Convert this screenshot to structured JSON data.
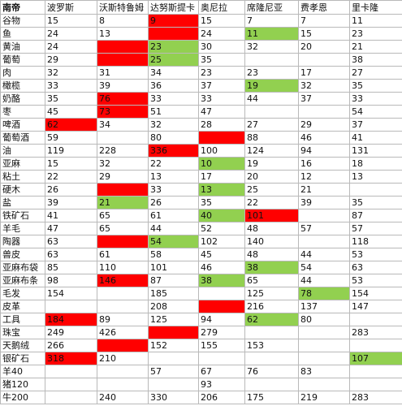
{
  "table": {
    "corner": "南帝",
    "columns": [
      "波罗斯",
      "沃斯特鲁姆",
      "达努斯提卡",
      "奥尼拉",
      "席隆尼亚",
      "费孝恩",
      "里卡隆"
    ],
    "rows": [
      {
        "item": "谷物",
        "cells": [
          {
            "v": "15"
          },
          {
            "v": "8"
          },
          {
            "v": "9",
            "h": "red"
          },
          {
            "v": "15"
          },
          {
            "v": "7"
          },
          {
            "v": "7"
          },
          {
            "v": "11"
          }
        ]
      },
      {
        "item": "鱼",
        "cells": [
          {
            "v": "24"
          },
          {
            "v": "13"
          },
          {
            "v": "",
            "h": "red"
          },
          {
            "v": "24"
          },
          {
            "v": "11",
            "h": "green"
          },
          {
            "v": "15"
          },
          {
            "v": "23"
          }
        ]
      },
      {
        "item": "黄油",
        "cells": [
          {
            "v": "24"
          },
          {
            "v": "",
            "h": "red"
          },
          {
            "v": "23",
            "h": "green"
          },
          {
            "v": "30"
          },
          {
            "v": "32"
          },
          {
            "v": "20"
          },
          {
            "v": "21"
          }
        ]
      },
      {
        "item": "葡萄",
        "cells": [
          {
            "v": "29"
          },
          {
            "v": "",
            "h": "red"
          },
          {
            "v": "25",
            "h": "green"
          },
          {
            "v": "35"
          },
          {
            "v": ""
          },
          {
            "v": ""
          },
          {
            "v": "38"
          }
        ]
      },
      {
        "item": "肉",
        "cells": [
          {
            "v": "32"
          },
          {
            "v": "31"
          },
          {
            "v": "34"
          },
          {
            "v": "23"
          },
          {
            "v": "23"
          },
          {
            "v": "17"
          },
          {
            "v": "27"
          }
        ]
      },
      {
        "item": "橄榄",
        "cells": [
          {
            "v": "33"
          },
          {
            "v": "39"
          },
          {
            "v": "36"
          },
          {
            "v": "37"
          },
          {
            "v": "19",
            "h": "green"
          },
          {
            "v": "32"
          },
          {
            "v": "35"
          }
        ]
      },
      {
        "item": "奶酪",
        "cells": [
          {
            "v": "35"
          },
          {
            "v": "76",
            "h": "red"
          },
          {
            "v": "33"
          },
          {
            "v": "33"
          },
          {
            "v": "44"
          },
          {
            "v": "37"
          },
          {
            "v": "33"
          }
        ]
      },
      {
        "item": "枣",
        "cells": [
          {
            "v": "45"
          },
          {
            "v": "73",
            "h": "red"
          },
          {
            "v": "51"
          },
          {
            "v": "47"
          },
          {
            "v": ""
          },
          {
            "v": ""
          },
          {
            "v": "54"
          }
        ]
      },
      {
        "item": "啤酒",
        "cells": [
          {
            "v": "62",
            "h": "red"
          },
          {
            "v": "34"
          },
          {
            "v": "32"
          },
          {
            "v": "28"
          },
          {
            "v": "27"
          },
          {
            "v": "29"
          },
          {
            "v": "37"
          }
        ]
      },
      {
        "item": "葡萄酒",
        "cells": [
          {
            "v": "59"
          },
          {
            "v": ""
          },
          {
            "v": "80"
          },
          {
            "v": "",
            "h": "red"
          },
          {
            "v": "88"
          },
          {
            "v": "46"
          },
          {
            "v": "41"
          }
        ]
      },
      {
        "item": "油",
        "cells": [
          {
            "v": "119"
          },
          {
            "v": "228"
          },
          {
            "v": "336",
            "h": "red"
          },
          {
            "v": "100"
          },
          {
            "v": "124"
          },
          {
            "v": "94"
          },
          {
            "v": "131"
          }
        ]
      },
      {
        "item": "亚麻",
        "cells": [
          {
            "v": "15"
          },
          {
            "v": "32"
          },
          {
            "v": "22"
          },
          {
            "v": "10",
            "h": "green"
          },
          {
            "v": "19"
          },
          {
            "v": "16"
          },
          {
            "v": "18"
          }
        ]
      },
      {
        "item": "粘土",
        "cells": [
          {
            "v": "22"
          },
          {
            "v": "29"
          },
          {
            "v": "13"
          },
          {
            "v": "17"
          },
          {
            "v": "20"
          },
          {
            "v": "12"
          },
          {
            "v": "13"
          }
        ]
      },
      {
        "item": "硬木",
        "cells": [
          {
            "v": "26"
          },
          {
            "v": "",
            "h": "red"
          },
          {
            "v": "33"
          },
          {
            "v": "13",
            "h": "green"
          },
          {
            "v": "25"
          },
          {
            "v": "21"
          },
          {
            "v": ""
          }
        ]
      },
      {
        "item": "盐",
        "cells": [
          {
            "v": "39"
          },
          {
            "v": "21",
            "h": "green"
          },
          {
            "v": "26"
          },
          {
            "v": "35"
          },
          {
            "v": "22"
          },
          {
            "v": "39"
          },
          {
            "v": "35"
          }
        ]
      },
      {
        "item": "铁矿石",
        "cells": [
          {
            "v": "41"
          },
          {
            "v": "65"
          },
          {
            "v": "61"
          },
          {
            "v": "40",
            "h": "green"
          },
          {
            "v": "101",
            "h": "red"
          },
          {
            "v": ""
          },
          {
            "v": "87"
          }
        ]
      },
      {
        "item": "羊毛",
        "cells": [
          {
            "v": "47"
          },
          {
            "v": "65"
          },
          {
            "v": "44"
          },
          {
            "v": "52"
          },
          {
            "v": "48"
          },
          {
            "v": "57"
          },
          {
            "v": "57"
          }
        ]
      },
      {
        "item": "陶器",
        "cells": [
          {
            "v": "63"
          },
          {
            "v": "",
            "h": "red"
          },
          {
            "v": "54",
            "h": "green"
          },
          {
            "v": "102"
          },
          {
            "v": "140"
          },
          {
            "v": ""
          },
          {
            "v": "118"
          }
        ]
      },
      {
        "item": "兽皮",
        "cells": [
          {
            "v": "63"
          },
          {
            "v": "61"
          },
          {
            "v": "58"
          },
          {
            "v": "45"
          },
          {
            "v": "48"
          },
          {
            "v": "44"
          },
          {
            "v": "53"
          }
        ]
      },
      {
        "item": "亚麻布袋",
        "cells": [
          {
            "v": "85"
          },
          {
            "v": "110"
          },
          {
            "v": "101"
          },
          {
            "v": "46"
          },
          {
            "v": "38",
            "h": "green"
          },
          {
            "v": "54"
          },
          {
            "v": "63"
          }
        ]
      },
      {
        "item": "亚麻布条",
        "cells": [
          {
            "v": "98"
          },
          {
            "v": "146",
            "h": "red"
          },
          {
            "v": "87"
          },
          {
            "v": "38",
            "h": "green"
          },
          {
            "v": "65"
          },
          {
            "v": "44"
          },
          {
            "v": "53"
          }
        ]
      },
      {
        "item": "毛发",
        "cells": [
          {
            "v": "154"
          },
          {
            "v": ""
          },
          {
            "v": "185"
          },
          {
            "v": ""
          },
          {
            "v": "125"
          },
          {
            "v": "78",
            "h": "green"
          },
          {
            "v": "154"
          }
        ]
      },
      {
        "item": "皮革",
        "cells": [
          {
            "v": ""
          },
          {
            "v": ""
          },
          {
            "v": "208"
          },
          {
            "v": "",
            "h": "red"
          },
          {
            "v": "216"
          },
          {
            "v": "137"
          },
          {
            "v": "147"
          }
        ]
      },
      {
        "item": "工具",
        "cells": [
          {
            "v": "184",
            "h": "red"
          },
          {
            "v": "89"
          },
          {
            "v": "125"
          },
          {
            "v": "94"
          },
          {
            "v": "62",
            "h": "green"
          },
          {
            "v": "80"
          },
          {
            "v": ""
          }
        ]
      },
      {
        "item": "珠宝",
        "cells": [
          {
            "v": "249"
          },
          {
            "v": "426"
          },
          {
            "v": "",
            "h": "red"
          },
          {
            "v": "279"
          },
          {
            "v": ""
          },
          {
            "v": ""
          },
          {
            "v": "283"
          }
        ]
      },
      {
        "item": "天鹅绒",
        "cells": [
          {
            "v": "266"
          },
          {
            "v": "",
            "h": "red"
          },
          {
            "v": "152"
          },
          {
            "v": "155"
          },
          {
            "v": "153"
          },
          {
            "v": ""
          },
          {
            "v": ""
          }
        ]
      },
      {
        "item": "银矿石",
        "cells": [
          {
            "v": "318",
            "h": "red"
          },
          {
            "v": "210"
          },
          {
            "v": ""
          },
          {
            "v": ""
          },
          {
            "v": ""
          },
          {
            "v": ""
          },
          {
            "v": "107",
            "h": "green"
          }
        ]
      },
      {
        "item": "羊40",
        "cells": [
          {
            "v": ""
          },
          {
            "v": ""
          },
          {
            "v": "57"
          },
          {
            "v": "67"
          },
          {
            "v": "76"
          },
          {
            "v": "83"
          },
          {
            "v": ""
          }
        ]
      },
      {
        "item": "猪120",
        "cells": [
          {
            "v": ""
          },
          {
            "v": ""
          },
          {
            "v": ""
          },
          {
            "v": "93"
          },
          {
            "v": ""
          },
          {
            "v": ""
          },
          {
            "v": ""
          }
        ]
      },
      {
        "item": "牛200",
        "cells": [
          {
            "v": ""
          },
          {
            "v": "240"
          },
          {
            "v": "330"
          },
          {
            "v": "206"
          },
          {
            "v": "175"
          },
          {
            "v": "219"
          },
          {
            "v": "283"
          }
        ]
      }
    ]
  }
}
